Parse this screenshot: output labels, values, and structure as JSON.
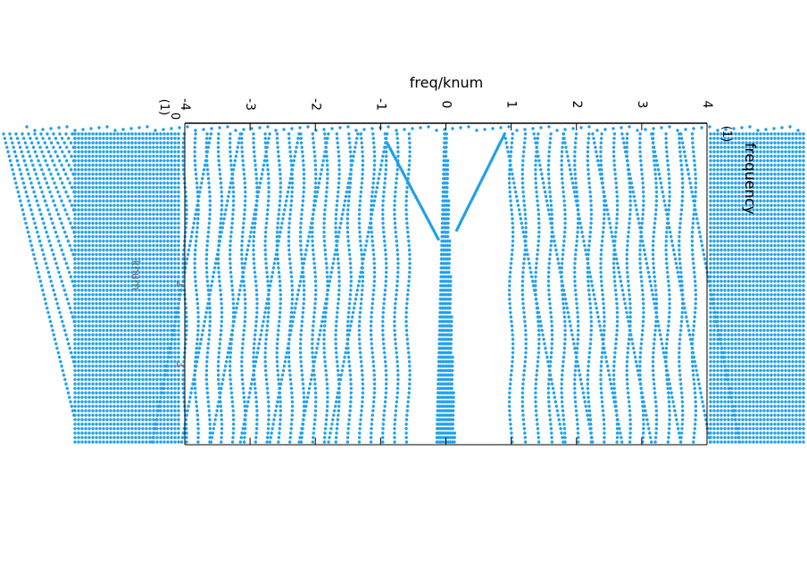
{
  "chart_data": {
    "type": "scatter",
    "xlabel": "freq/knum",
    "x_unit_label": "(1)",
    "ylabel": "frequency",
    "y_unit_label": "(1)",
    "y_secondary_label": "knum",
    "x_ticks": [
      "-4",
      "-3",
      "-2",
      "-1",
      "0",
      "1",
      "2",
      "3",
      "4"
    ],
    "xlim": [
      -4,
      4
    ],
    "y_bottom_tick": "0",
    "hidden_axis_ticks": [
      "2",
      "3"
    ],
    "marker": "filled dot",
    "series_color": "#1f9fe8",
    "axis_color": "#000000",
    "grid": false,
    "legend": "none"
  }
}
